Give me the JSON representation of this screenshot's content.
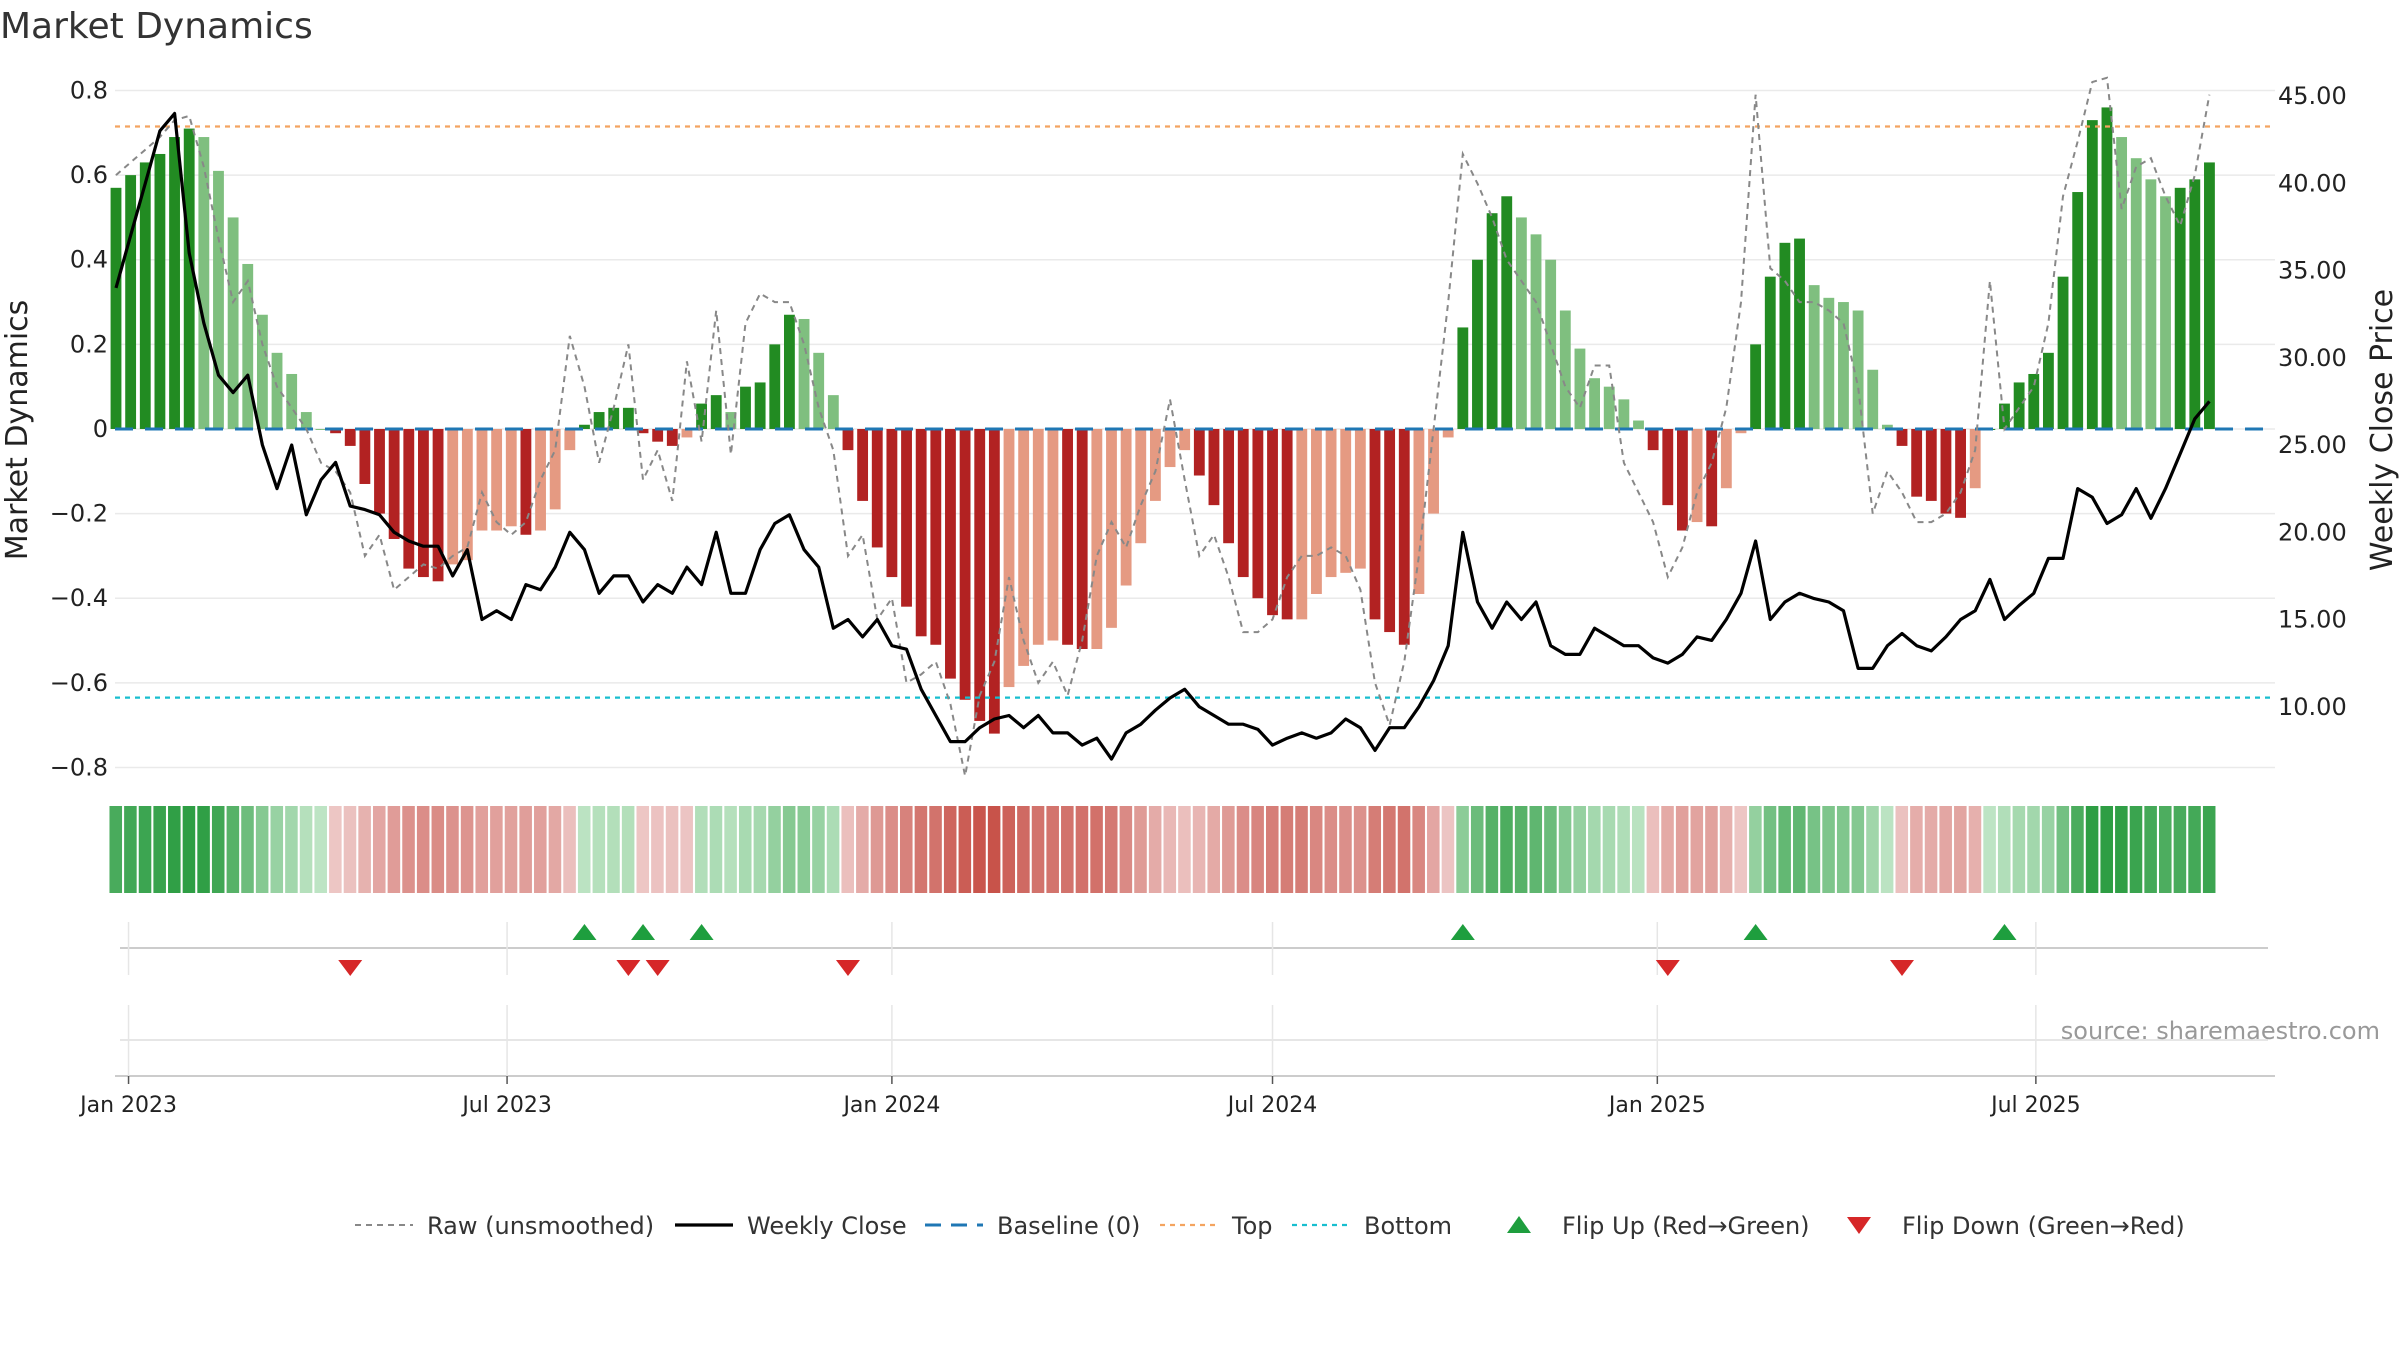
{
  "chart_data": {
    "type": "bar",
    "title": "Market Dynamics",
    "ylabel_left": "Market Dynamics",
    "ylabel_right": "Weekly Close Price",
    "source": "source: sharemaestro.com",
    "ylim_left": [
      -0.85,
      0.82
    ],
    "yticks_left": [
      "0.8",
      "0.6",
      "0.4",
      "0.2",
      "0",
      "−0.2",
      "−0.4",
      "−0.6",
      "−0.8"
    ],
    "ylim_right": [
      6.0,
      46.0
    ],
    "yticks_right": [
      "45.00",
      "40.00",
      "35.00",
      "30.00",
      "25.00",
      "20.00",
      "15.00",
      "10.00"
    ],
    "x_ticks": [
      "Jan 2023",
      "Jul 2023",
      "Jan 2024",
      "Jul 2024",
      "Jan 2025",
      "Jul 2025"
    ],
    "x_start": "2022-12-26",
    "x_end": "2025-10-20",
    "top_level": 0.715,
    "bottom_level": -0.635,
    "baseline": 0,
    "colors": {
      "strong_green": "#228b22",
      "light_green": "#7fbf7f",
      "strong_red": "#b22222",
      "light_red": "#e59a82",
      "close_line": "#000000",
      "raw_line": "#888888",
      "baseline": "#1f77b4",
      "top": "#f4a460",
      "bottom": "#17becf",
      "flip_up": "#1e9e3e",
      "flip_down": "#d62728"
    },
    "weeks": [
      {
        "date": "2022-12-26",
        "dyn": 0.57,
        "raw": 0.6,
        "close": 34
      },
      {
        "date": "2023-01-02",
        "dyn": 0.6,
        "raw": 0.63,
        "close": 37
      },
      {
        "date": "2023-01-09",
        "dyn": 0.63,
        "raw": 0.66,
        "close": 40
      },
      {
        "date": "2023-01-16",
        "dyn": 0.65,
        "raw": 0.69,
        "close": 43
      },
      {
        "date": "2023-01-23",
        "dyn": 0.69,
        "raw": 0.73,
        "close": 44
      },
      {
        "date": "2023-01-30",
        "dyn": 0.71,
        "raw": 0.74,
        "close": 36
      },
      {
        "date": "2023-02-06",
        "dyn": 0.69,
        "raw": 0.62,
        "close": 32
      },
      {
        "date": "2023-02-13",
        "dyn": 0.61,
        "raw": 0.45,
        "close": 29
      },
      {
        "date": "2023-02-20",
        "dyn": 0.5,
        "raw": 0.3,
        "close": 28
      },
      {
        "date": "2023-02-27",
        "dyn": 0.39,
        "raw": 0.35,
        "close": 29
      },
      {
        "date": "2023-03-06",
        "dyn": 0.27,
        "raw": 0.2,
        "close": 25
      },
      {
        "date": "2023-03-13",
        "dyn": 0.18,
        "raw": 0.1,
        "close": 22.5
      },
      {
        "date": "2023-03-20",
        "dyn": 0.13,
        "raw": 0.05,
        "close": 25
      },
      {
        "date": "2023-03-27",
        "dyn": 0.04,
        "raw": 0.0,
        "close": 21
      },
      {
        "date": "2023-04-03",
        "dyn": 0.0,
        "raw": -0.08,
        "close": 23
      },
      {
        "date": "2023-04-10",
        "dyn": -0.01,
        "raw": -0.1,
        "close": 24
      },
      {
        "date": "2023-04-17",
        "dyn": -0.04,
        "raw": -0.15,
        "close": 21.5
      },
      {
        "date": "2023-04-24",
        "dyn": -0.13,
        "raw": -0.3,
        "close": 21.3
      },
      {
        "date": "2023-05-01",
        "dyn": -0.2,
        "raw": -0.25,
        "close": 21
      },
      {
        "date": "2023-05-08",
        "dyn": -0.26,
        "raw": -0.38,
        "close": 20
      },
      {
        "date": "2023-05-15",
        "dyn": -0.33,
        "raw": -0.35,
        "close": 19.5
      },
      {
        "date": "2023-05-22",
        "dyn": -0.35,
        "raw": -0.32,
        "close": 19.2
      },
      {
        "date": "2023-05-29",
        "dyn": -0.36,
        "raw": -0.33,
        "close": 19.2
      },
      {
        "date": "2023-06-05",
        "dyn": -0.32,
        "raw": -0.3,
        "close": 17.5
      },
      {
        "date": "2023-06-12",
        "dyn": -0.31,
        "raw": -0.28,
        "close": 19
      },
      {
        "date": "2023-06-19",
        "dyn": -0.24,
        "raw": -0.15,
        "close": 15
      },
      {
        "date": "2023-06-26",
        "dyn": -0.24,
        "raw": -0.22,
        "close": 15.5
      },
      {
        "date": "2023-07-03",
        "dyn": -0.23,
        "raw": -0.25,
        "close": 15
      },
      {
        "date": "2023-07-10",
        "dyn": -0.25,
        "raw": -0.22,
        "close": 17
      },
      {
        "date": "2023-07-17",
        "dyn": -0.24,
        "raw": -0.12,
        "close": 16.7
      },
      {
        "date": "2023-07-24",
        "dyn": -0.19,
        "raw": -0.05,
        "close": 18
      },
      {
        "date": "2023-07-31",
        "dyn": -0.05,
        "raw": 0.22,
        "close": 20
      },
      {
        "date": "2023-08-07",
        "dyn": 0.01,
        "raw": 0.1,
        "close": 19
      },
      {
        "date": "2023-08-14",
        "dyn": 0.04,
        "raw": -0.08,
        "close": 16.5
      },
      {
        "date": "2023-08-21",
        "dyn": 0.05,
        "raw": 0.05,
        "close": 17.5
      },
      {
        "date": "2023-08-28",
        "dyn": 0.05,
        "raw": 0.2,
        "close": 17.5
      },
      {
        "date": "2023-09-04",
        "dyn": -0.01,
        "raw": -0.12,
        "close": 16
      },
      {
        "date": "2023-09-11",
        "dyn": -0.03,
        "raw": -0.05,
        "close": 17
      },
      {
        "date": "2023-09-18",
        "dyn": -0.04,
        "raw": -0.17,
        "close": 16.5
      },
      {
        "date": "2023-09-25",
        "dyn": -0.02,
        "raw": 0.16,
        "close": 18
      },
      {
        "date": "2023-10-02",
        "dyn": 0.06,
        "raw": -0.03,
        "close": 17
      },
      {
        "date": "2023-10-09",
        "dyn": 0.08,
        "raw": 0.28,
        "close": 20
      },
      {
        "date": "2023-10-16",
        "dyn": 0.04,
        "raw": -0.06,
        "close": 16.5
      },
      {
        "date": "2023-10-23",
        "dyn": 0.1,
        "raw": 0.25,
        "close": 16.5
      },
      {
        "date": "2023-10-30",
        "dyn": 0.11,
        "raw": 0.32,
        "close": 19
      },
      {
        "date": "2023-11-06",
        "dyn": 0.2,
        "raw": 0.3,
        "close": 20.5
      },
      {
        "date": "2023-11-13",
        "dyn": 0.27,
        "raw": 0.3,
        "close": 21
      },
      {
        "date": "2023-11-20",
        "dyn": 0.26,
        "raw": 0.2,
        "close": 19
      },
      {
        "date": "2023-11-27",
        "dyn": 0.18,
        "raw": 0.05,
        "close": 18
      },
      {
        "date": "2023-12-04",
        "dyn": 0.08,
        "raw": -0.05,
        "close": 14.5
      },
      {
        "date": "2023-12-11",
        "dyn": -0.05,
        "raw": -0.3,
        "close": 15
      },
      {
        "date": "2023-12-18",
        "dyn": -0.17,
        "raw": -0.25,
        "close": 14
      },
      {
        "date": "2023-12-25",
        "dyn": -0.28,
        "raw": -0.45,
        "close": 15
      },
      {
        "date": "2024-01-01",
        "dyn": -0.35,
        "raw": -0.4,
        "close": 13.5
      },
      {
        "date": "2024-01-08",
        "dyn": -0.42,
        "raw": -0.6,
        "close": 13.3
      },
      {
        "date": "2024-01-15",
        "dyn": -0.49,
        "raw": -0.58,
        "close": 11
      },
      {
        "date": "2024-01-22",
        "dyn": -0.51,
        "raw": -0.55,
        "close": 9.5
      },
      {
        "date": "2024-01-29",
        "dyn": -0.59,
        "raw": -0.65,
        "close": 8
      },
      {
        "date": "2024-02-05",
        "dyn": -0.64,
        "raw": -0.82,
        "close": 8
      },
      {
        "date": "2024-02-12",
        "dyn": -0.69,
        "raw": -0.63,
        "close": 8.8
      },
      {
        "date": "2024-02-19",
        "dyn": -0.72,
        "raw": -0.55,
        "close": 9.3
      },
      {
        "date": "2024-02-26",
        "dyn": -0.61,
        "raw": -0.35,
        "close": 9.5
      },
      {
        "date": "2024-03-04",
        "dyn": -0.56,
        "raw": -0.5,
        "close": 8.8
      },
      {
        "date": "2024-03-11",
        "dyn": -0.51,
        "raw": -0.6,
        "close": 9.5
      },
      {
        "date": "2024-03-18",
        "dyn": -0.5,
        "raw": -0.55,
        "close": 8.5
      },
      {
        "date": "2024-03-25",
        "dyn": -0.51,
        "raw": -0.63,
        "close": 8.5
      },
      {
        "date": "2024-04-01",
        "dyn": -0.52,
        "raw": -0.5,
        "close": 7.8
      },
      {
        "date": "2024-04-08",
        "dyn": -0.52,
        "raw": -0.3,
        "close": 8.2
      },
      {
        "date": "2024-04-15",
        "dyn": -0.47,
        "raw": -0.22,
        "close": 7
      },
      {
        "date": "2024-04-22",
        "dyn": -0.37,
        "raw": -0.28,
        "close": 8.5
      },
      {
        "date": "2024-04-29",
        "dyn": -0.27,
        "raw": -0.18,
        "close": 9
      },
      {
        "date": "2024-05-06",
        "dyn": -0.17,
        "raw": -0.1,
        "close": 9.8
      },
      {
        "date": "2024-05-13",
        "dyn": -0.09,
        "raw": 0.07,
        "close": 10.5
      },
      {
        "date": "2024-05-20",
        "dyn": -0.05,
        "raw": -0.12,
        "close": 11
      },
      {
        "date": "2024-05-27",
        "dyn": -0.11,
        "raw": -0.3,
        "close": 10
      },
      {
        "date": "2024-06-03",
        "dyn": -0.18,
        "raw": -0.25,
        "close": 9.5
      },
      {
        "date": "2024-06-10",
        "dyn": -0.27,
        "raw": -0.35,
        "close": 9
      },
      {
        "date": "2024-06-17",
        "dyn": -0.35,
        "raw": -0.48,
        "close": 9
      },
      {
        "date": "2024-06-24",
        "dyn": -0.4,
        "raw": -0.48,
        "close": 8.7
      },
      {
        "date": "2024-07-01",
        "dyn": -0.44,
        "raw": -0.45,
        "close": 7.8
      },
      {
        "date": "2024-07-08",
        "dyn": -0.45,
        "raw": -0.35,
        "close": 8.2
      },
      {
        "date": "2024-07-15",
        "dyn": -0.45,
        "raw": -0.3,
        "close": 8.5
      },
      {
        "date": "2024-07-22",
        "dyn": -0.39,
        "raw": -0.3,
        "close": 8.2
      },
      {
        "date": "2024-07-29",
        "dyn": -0.35,
        "raw": -0.28,
        "close": 8.5
      },
      {
        "date": "2024-08-05",
        "dyn": -0.34,
        "raw": -0.3,
        "close": 9.3
      },
      {
        "date": "2024-08-12",
        "dyn": -0.33,
        "raw": -0.38,
        "close": 8.8
      },
      {
        "date": "2024-08-19",
        "dyn": -0.45,
        "raw": -0.6,
        "close": 7.5
      },
      {
        "date": "2024-08-26",
        "dyn": -0.48,
        "raw": -0.7,
        "close": 8.8
      },
      {
        "date": "2024-09-02",
        "dyn": -0.51,
        "raw": -0.55,
        "close": 8.8
      },
      {
        "date": "2024-09-09",
        "dyn": -0.39,
        "raw": -0.3,
        "close": 10
      },
      {
        "date": "2024-09-16",
        "dyn": -0.2,
        "raw": 0.0,
        "close": 11.5
      },
      {
        "date": "2024-09-23",
        "dyn": -0.02,
        "raw": 0.3,
        "close": 13.5
      },
      {
        "date": "2024-09-30",
        "dyn": 0.24,
        "raw": 0.65,
        "close": 20
      },
      {
        "date": "2024-10-07",
        "dyn": 0.4,
        "raw": 0.58,
        "close": 16
      },
      {
        "date": "2024-10-14",
        "dyn": 0.51,
        "raw": 0.5,
        "close": 14.5
      },
      {
        "date": "2024-10-21",
        "dyn": 0.55,
        "raw": 0.4,
        "close": 16
      },
      {
        "date": "2024-10-28",
        "dyn": 0.5,
        "raw": 0.35,
        "close": 15
      },
      {
        "date": "2024-11-04",
        "dyn": 0.46,
        "raw": 0.3,
        "close": 16
      },
      {
        "date": "2024-11-11",
        "dyn": 0.4,
        "raw": 0.2,
        "close": 13.5
      },
      {
        "date": "2024-11-18",
        "dyn": 0.28,
        "raw": 0.1,
        "close": 13
      },
      {
        "date": "2024-11-25",
        "dyn": 0.19,
        "raw": 0.05,
        "close": 13
      },
      {
        "date": "2024-12-02",
        "dyn": 0.12,
        "raw": 0.15,
        "close": 14.5
      },
      {
        "date": "2024-12-09",
        "dyn": 0.1,
        "raw": 0.15,
        "close": 14
      },
      {
        "date": "2024-12-16",
        "dyn": 0.07,
        "raw": -0.08,
        "close": 13.5
      },
      {
        "date": "2024-12-23",
        "dyn": 0.02,
        "raw": -0.15,
        "close": 13.5
      },
      {
        "date": "2024-12-30",
        "dyn": -0.05,
        "raw": -0.22,
        "close": 12.8
      },
      {
        "date": "2025-01-06",
        "dyn": -0.18,
        "raw": -0.35,
        "close": 12.5
      },
      {
        "date": "2025-01-13",
        "dyn": -0.24,
        "raw": -0.28,
        "close": 13
      },
      {
        "date": "2025-01-20",
        "dyn": -0.22,
        "raw": -0.15,
        "close": 14
      },
      {
        "date": "2025-01-27",
        "dyn": -0.23,
        "raw": -0.08,
        "close": 13.8
      },
      {
        "date": "2025-02-03",
        "dyn": -0.14,
        "raw": 0.05,
        "close": 15
      },
      {
        "date": "2025-02-10",
        "dyn": -0.01,
        "raw": 0.3,
        "close": 16.5
      },
      {
        "date": "2025-02-17",
        "dyn": 0.2,
        "raw": 0.79,
        "close": 19.5
      },
      {
        "date": "2025-02-24",
        "dyn": 0.36,
        "raw": 0.38,
        "close": 15
      },
      {
        "date": "2025-03-03",
        "dyn": 0.44,
        "raw": 0.35,
        "close": 16
      },
      {
        "date": "2025-03-10",
        "dyn": 0.45,
        "raw": 0.3,
        "close": 16.5
      },
      {
        "date": "2025-03-17",
        "dyn": 0.34,
        "raw": 0.3,
        "close": 16.2
      },
      {
        "date": "2025-03-24",
        "dyn": 0.31,
        "raw": 0.28,
        "close": 16
      },
      {
        "date": "2025-03-31",
        "dyn": 0.3,
        "raw": 0.25,
        "close": 15.5
      },
      {
        "date": "2025-04-07",
        "dyn": 0.28,
        "raw": 0.1,
        "close": 12.2
      },
      {
        "date": "2025-04-14",
        "dyn": 0.14,
        "raw": -0.2,
        "close": 12.2
      },
      {
        "date": "2025-04-21",
        "dyn": 0.01,
        "raw": -0.1,
        "close": 13.5
      },
      {
        "date": "2025-04-28",
        "dyn": -0.04,
        "raw": -0.15,
        "close": 14.2
      },
      {
        "date": "2025-05-05",
        "dyn": -0.16,
        "raw": -0.22,
        "close": 13.5
      },
      {
        "date": "2025-05-12",
        "dyn": -0.17,
        "raw": -0.22,
        "close": 13.2
      },
      {
        "date": "2025-05-19",
        "dyn": -0.2,
        "raw": -0.2,
        "close": 14
      },
      {
        "date": "2025-05-26",
        "dyn": -0.21,
        "raw": -0.15,
        "close": 15
      },
      {
        "date": "2025-06-02",
        "dyn": -0.14,
        "raw": -0.05,
        "close": 15.5
      },
      {
        "date": "2025-06-09",
        "dyn": 0.0,
        "raw": 0.35,
        "close": 17.3
      },
      {
        "date": "2025-06-16",
        "dyn": 0.06,
        "raw": 0.0,
        "close": 15
      },
      {
        "date": "2025-06-23",
        "dyn": 0.11,
        "raw": 0.05,
        "close": 15.8
      },
      {
        "date": "2025-06-30",
        "dyn": 0.13,
        "raw": 0.1,
        "close": 16.5
      },
      {
        "date": "2025-07-07",
        "dyn": 0.18,
        "raw": 0.25,
        "close": 18.5
      },
      {
        "date": "2025-07-14",
        "dyn": 0.36,
        "raw": 0.55,
        "close": 18.5
      },
      {
        "date": "2025-07-21",
        "dyn": 0.56,
        "raw": 0.68,
        "close": 22.5
      },
      {
        "date": "2025-07-28",
        "dyn": 0.73,
        "raw": 0.82,
        "close": 22
      },
      {
        "date": "2025-08-04",
        "dyn": 0.76,
        "raw": 0.83,
        "close": 20.5
      },
      {
        "date": "2025-08-11",
        "dyn": 0.69,
        "raw": 0.52,
        "close": 21
      },
      {
        "date": "2025-08-18",
        "dyn": 0.64,
        "raw": 0.62,
        "close": 22.5
      },
      {
        "date": "2025-08-25",
        "dyn": 0.59,
        "raw": 0.64,
        "close": 20.8
      },
      {
        "date": "2025-09-01",
        "dyn": 0.55,
        "raw": 0.55,
        "close": 22.5
      },
      {
        "date": "2025-09-08",
        "dyn": 0.57,
        "raw": 0.48,
        "close": 24.5
      },
      {
        "date": "2025-09-15",
        "dyn": 0.59,
        "raw": 0.6,
        "close": 26.5
      },
      {
        "date": "2025-09-22",
        "dyn": 0.63,
        "raw": 0.79,
        "close": 27.5
      }
    ],
    "flip_up_dates": [
      "2023-08-07",
      "2023-09-04",
      "2023-10-02",
      "2024-09-30",
      "2025-02-17",
      "2025-06-16"
    ],
    "flip_down_dates": [
      "2023-04-17",
      "2023-08-28",
      "2023-09-11",
      "2023-12-11",
      "2025-01-06",
      "2025-04-28"
    ],
    "legend": [
      {
        "key": "raw",
        "label": "Raw (unsmoothed)"
      },
      {
        "key": "close",
        "label": "Weekly Close"
      },
      {
        "key": "baseline",
        "label": "Baseline (0)"
      },
      {
        "key": "top",
        "label": "Top"
      },
      {
        "key": "bottom",
        "label": "Bottom"
      },
      {
        "key": "flip_up",
        "label": "Flip Up (Red→Green)"
      },
      {
        "key": "flip_down",
        "label": "Flip Down (Green→Red)"
      }
    ]
  }
}
